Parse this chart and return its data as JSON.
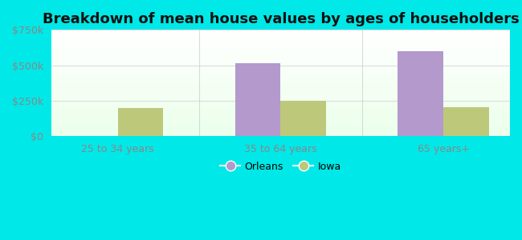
{
  "title": "Breakdown of mean house values by ages of householders",
  "categories": [
    "25 to 34 years",
    "35 to 64 years",
    "65 years+"
  ],
  "orleans_values": [
    0,
    515000,
    600000
  ],
  "iowa_values": [
    200000,
    252000,
    205000
  ],
  "orleans_color": "#b399cc",
  "iowa_color": "#bdc87a",
  "background_color": "#00e8e8",
  "ylim": [
    0,
    750000
  ],
  "yticks": [
    0,
    250000,
    500000,
    750000
  ],
  "ytick_labels": [
    "$0",
    "$250k",
    "$500k",
    "$750k"
  ],
  "legend_orleans": "Orleans",
  "legend_iowa": "Iowa",
  "bar_width": 0.28,
  "title_fontsize": 13,
  "tick_fontsize": 9,
  "legend_fontsize": 9,
  "grid_color": "#dddddd",
  "tick_color": "#888888"
}
